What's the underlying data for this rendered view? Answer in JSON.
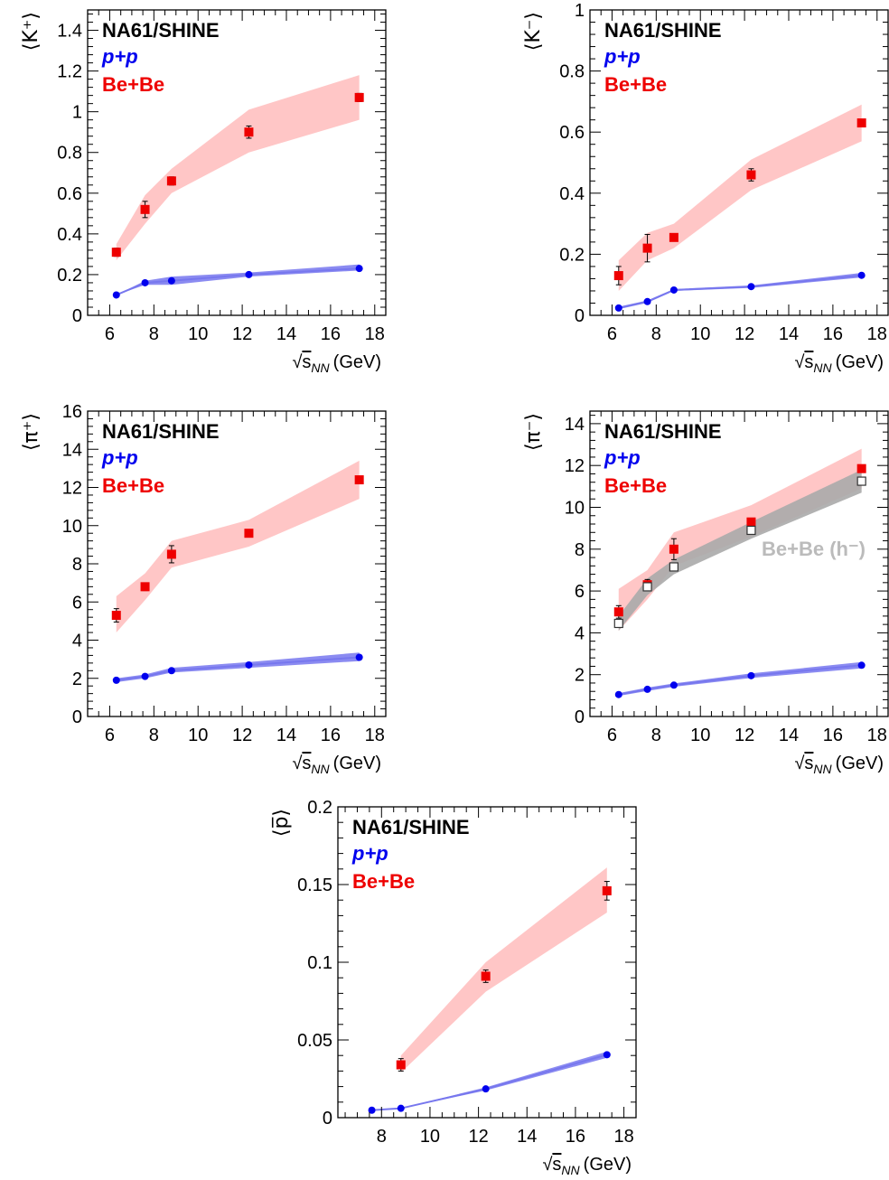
{
  "colors": {
    "pp": "#0000ee",
    "pp_band": "#7777ee",
    "bebe": "#ee0000",
    "bebe_band": "#ffc0c0",
    "hminus": "#bbbbbb",
    "hminus_band": "#aaaaaa",
    "experiment": "#000000"
  },
  "legend": {
    "experiment": "NA61/SHINE",
    "pp": "p+p",
    "bebe": "Be+Be",
    "hminus": "Be+Be (h⁻)"
  },
  "x_axis_label": "√s_NN (GeV)",
  "x_axis_label_parts": {
    "sqrt_arg": "s",
    "subscript": "NN",
    "unit": "(GeV)"
  },
  "chart_data": [
    {
      "type": "scatter",
      "panel": "k-plus",
      "ylabel": "⟨K⁺⟩",
      "xlim": [
        5,
        18.5
      ],
      "ylim": [
        0,
        1.5
      ],
      "xticks": [
        "6",
        "8",
        "10",
        "12",
        "14",
        "16",
        "18"
      ],
      "yticks": [
        "0",
        "0.2",
        "0.4",
        "0.6",
        "0.8",
        "1",
        "1.2",
        "1.4"
      ],
      "ytick_values": [
        0,
        0.2,
        0.4,
        0.6,
        0.8,
        1.0,
        1.2,
        1.4
      ],
      "legend_entries": [
        "NA61/SHINE",
        "p+p",
        "Be+Be"
      ],
      "series": [
        {
          "name": "p+p",
          "x": [
            6.3,
            7.6,
            8.8,
            12.3,
            17.3
          ],
          "y": [
            0.1,
            0.16,
            0.17,
            0.2,
            0.23
          ],
          "band_lo": [
            0.1,
            0.15,
            0.15,
            0.19,
            0.22
          ],
          "band_hi": [
            0.1,
            0.17,
            0.19,
            0.21,
            0.25
          ]
        },
        {
          "name": "Be+Be",
          "x": [
            6.3,
            7.6,
            8.8,
            12.3,
            17.3
          ],
          "y": [
            0.31,
            0.52,
            0.66,
            0.9,
            1.07
          ],
          "err": [
            0.02,
            0.04,
            0.02,
            0.03,
            0.02
          ],
          "band_lo": [
            0.27,
            0.45,
            0.6,
            0.8,
            0.96
          ],
          "band_hi": [
            0.35,
            0.59,
            0.72,
            1.01,
            1.18
          ]
        }
      ]
    },
    {
      "type": "scatter",
      "panel": "k-minus",
      "ylabel": "⟨K⁻⟩",
      "xlim": [
        5,
        18.5
      ],
      "ylim": [
        0,
        1.0
      ],
      "xticks": [
        "6",
        "8",
        "10",
        "12",
        "14",
        "16",
        "18"
      ],
      "yticks": [
        "0",
        "0.2",
        "0.4",
        "0.6",
        "0.8",
        "1"
      ],
      "ytick_values": [
        0,
        0.2,
        0.4,
        0.6,
        0.8,
        1.0
      ],
      "legend_entries": [
        "NA61/SHINE",
        "p+p",
        "Be+Be"
      ],
      "series": [
        {
          "name": "p+p",
          "x": [
            6.3,
            7.6,
            8.8,
            12.3,
            17.3
          ],
          "y": [
            0.024,
            0.045,
            0.083,
            0.094,
            0.131
          ],
          "band_lo": [
            0.02,
            0.041,
            0.08,
            0.09,
            0.124
          ],
          "band_hi": [
            0.028,
            0.049,
            0.086,
            0.098,
            0.139
          ]
        },
        {
          "name": "Be+Be",
          "x": [
            6.3,
            7.6,
            8.8,
            12.3,
            17.3
          ],
          "y": [
            0.13,
            0.22,
            0.255,
            0.46,
            0.63
          ],
          "err": [
            0.03,
            0.045,
            0.01,
            0.02,
            0.01
          ],
          "band_lo": [
            0.08,
            0.18,
            0.22,
            0.41,
            0.57
          ],
          "band_hi": [
            0.18,
            0.27,
            0.3,
            0.51,
            0.69
          ]
        }
      ]
    },
    {
      "type": "scatter",
      "panel": "pi-plus",
      "ylabel": "⟨π⁺⟩",
      "xlim": [
        5,
        18.5
      ],
      "ylim": [
        0,
        16
      ],
      "xticks": [
        "6",
        "8",
        "10",
        "12",
        "14",
        "16",
        "18"
      ],
      "yticks": [
        "0",
        "2",
        "4",
        "6",
        "8",
        "10",
        "12",
        "14",
        "16"
      ],
      "ytick_values": [
        0,
        2,
        4,
        6,
        8,
        10,
        12,
        14,
        16
      ],
      "legend_entries": [
        "NA61/SHINE",
        "p+p",
        "Be+Be"
      ],
      "series": [
        {
          "name": "p+p",
          "x": [
            6.3,
            7.6,
            8.8,
            12.3,
            17.3
          ],
          "y": [
            1.9,
            2.1,
            2.4,
            2.7,
            3.1
          ],
          "band_lo": [
            1.8,
            2.0,
            2.3,
            2.55,
            2.9
          ],
          "band_hi": [
            2.0,
            2.2,
            2.55,
            2.85,
            3.35
          ]
        },
        {
          "name": "Be+Be",
          "x": [
            6.3,
            7.6,
            8.8,
            12.3,
            17.3
          ],
          "y": [
            5.3,
            6.8,
            8.5,
            9.6,
            12.4
          ],
          "err": [
            0.35,
            0.2,
            0.45,
            0.15,
            0.15
          ],
          "band_lo": [
            4.4,
            6.1,
            7.8,
            8.9,
            11.4
          ],
          "band_hi": [
            6.3,
            7.5,
            9.2,
            10.3,
            13.4
          ]
        }
      ]
    },
    {
      "type": "scatter",
      "panel": "pi-minus",
      "ylabel": "⟨π⁻⟩",
      "xlim": [
        5,
        18.5
      ],
      "ylim": [
        0,
        14.6
      ],
      "xticks": [
        "6",
        "8",
        "10",
        "12",
        "14",
        "16",
        "18"
      ],
      "yticks": [
        "0",
        "2",
        "4",
        "6",
        "8",
        "10",
        "12",
        "14"
      ],
      "ytick_values": [
        0,
        2,
        4,
        6,
        8,
        10,
        12,
        14
      ],
      "legend_entries": [
        "NA61/SHINE",
        "p+p",
        "Be+Be",
        "Be+Be (h⁻)"
      ],
      "series": [
        {
          "name": "p+p",
          "x": [
            6.3,
            7.6,
            8.8,
            12.3,
            17.3
          ],
          "y": [
            1.05,
            1.3,
            1.5,
            1.95,
            2.45
          ],
          "band_lo": [
            0.98,
            1.22,
            1.42,
            1.84,
            2.3
          ],
          "band_hi": [
            1.12,
            1.38,
            1.58,
            2.06,
            2.6
          ]
        },
        {
          "name": "Be+Be",
          "x": [
            6.3,
            7.6,
            8.8,
            12.3,
            17.3
          ],
          "y": [
            5.0,
            6.3,
            8.0,
            9.3,
            11.85
          ],
          "err": [
            0.3,
            0.25,
            0.5,
            0.15,
            0.15
          ],
          "band_lo": [
            4.1,
            5.6,
            7.2,
            8.6,
            10.9
          ],
          "band_hi": [
            6.1,
            7.0,
            8.8,
            10.1,
            12.8
          ]
        },
        {
          "name": "Be+Be (h⁻)",
          "x": [
            6.3,
            7.6,
            8.8,
            12.3,
            17.3
          ],
          "y": [
            4.45,
            6.2,
            7.15,
            8.9,
            11.25
          ],
          "band_lo": [
            4.1,
            5.8,
            6.8,
            8.5,
            10.7
          ],
          "band_hi": [
            4.8,
            6.6,
            7.5,
            9.3,
            11.8
          ]
        }
      ]
    },
    {
      "type": "scatter",
      "panel": "pbar",
      "ylabel": "⟨p̅⟩",
      "xlim": [
        6.2,
        18.5
      ],
      "ylim": [
        0,
        0.2
      ],
      "xticks": [
        "8",
        "10",
        "12",
        "14",
        "16",
        "18"
      ],
      "yticks": [
        "0",
        "0.05",
        "0.1",
        "0.15",
        "0.2"
      ],
      "ytick_values": [
        0,
        0.05,
        0.1,
        0.15,
        0.2
      ],
      "legend_entries": [
        "NA61/SHINE",
        "p+p",
        "Be+Be"
      ],
      "series": [
        {
          "name": "p+p",
          "x": [
            7.6,
            8.8,
            12.3,
            17.3
          ],
          "y": [
            0.0048,
            0.006,
            0.0185,
            0.0405
          ],
          "band_lo": [
            0.0046,
            0.0058,
            0.0175,
            0.0385
          ],
          "band_hi": [
            0.005,
            0.0062,
            0.0195,
            0.0425
          ]
        },
        {
          "name": "Be+Be",
          "x": [
            8.8,
            12.3,
            17.3
          ],
          "y": [
            0.034,
            0.091,
            0.146
          ],
          "err": [
            0.004,
            0.004,
            0.006
          ],
          "band_lo": [
            0.029,
            0.081,
            0.132
          ],
          "band_hi": [
            0.04,
            0.1,
            0.161
          ]
        }
      ]
    }
  ]
}
